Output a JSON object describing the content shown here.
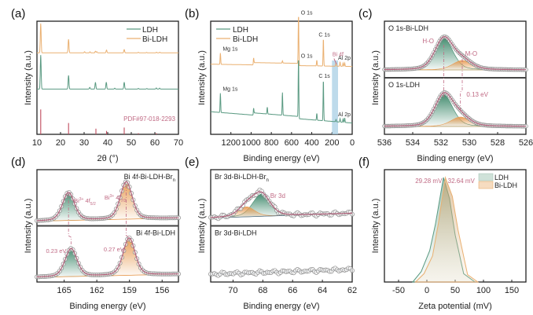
{
  "colors": {
    "ldh": "#5a9a82",
    "bi_ldh": "#eab071",
    "annotation": "#c06a84",
    "pdf_ref": "#c04a5e",
    "highlight": "#a8cfe4",
    "fit_line": "#b0607a",
    "marker_edge": "#8a8a8a",
    "frame": "#222222",
    "green_fill": "#3f8a6c",
    "orange_fill": "#e79b52"
  },
  "chart_data": [
    {
      "id": "a",
      "panel_label": "(a)",
      "type": "line",
      "title": "",
      "xlabel": "2θ (°)",
      "ylabel": "Intensity (a.u.)",
      "xlim": [
        10,
        70
      ],
      "xticks": [
        10,
        20,
        30,
        40,
        50,
        60,
        70
      ],
      "legend": {
        "placement": "top-right",
        "entries": [
          "LDH",
          "Bi-LDH"
        ]
      },
      "series": [
        {
          "name": "Bi-LDH",
          "color_key": "bi_ldh",
          "baseline": 0.72,
          "peaks": [
            [
              11.6,
              0.26
            ],
            [
              23.4,
              0.12
            ],
            [
              30.2,
              0.01
            ],
            [
              32.5,
              0.01
            ],
            [
              34.8,
              0.015
            ],
            [
              35.4,
              0.01
            ],
            [
              39.5,
              0.025
            ],
            [
              47.0,
              0.03
            ],
            [
              53.0,
              0.005
            ],
            [
              56.5,
              0.004
            ],
            [
              60.7,
              0.006
            ],
            [
              62.1,
              0.006
            ]
          ]
        },
        {
          "name": "LDH",
          "color_key": "ldh",
          "baseline": 0.4,
          "peaks": [
            [
              11.6,
              0.3
            ],
            [
              23.4,
              0.12
            ],
            [
              32.4,
              0.015
            ],
            [
              34.8,
              0.06
            ],
            [
              39.4,
              0.06
            ],
            [
              43.0,
              0.008
            ],
            [
              47.0,
              0.06
            ],
            [
              53.0,
              0.006
            ],
            [
              56.6,
              0.005
            ],
            [
              60.6,
              0.01
            ],
            [
              62.0,
              0.008
            ]
          ]
        }
      ],
      "reference": {
        "label": "PDF#97-018-2293",
        "peaks": [
          [
            11.6,
            0.22
          ],
          [
            23.4,
            0.1
          ],
          [
            35.0,
            0.05
          ],
          [
            39.5,
            0.03
          ],
          [
            47.0,
            0.06
          ],
          [
            53.0,
            0.01
          ],
          [
            60.6,
            0.01
          ]
        ]
      }
    },
    {
      "id": "b",
      "panel_label": "(b)",
      "type": "line",
      "xlabel": "Binding energy (eV)",
      "ylabel": "Intensity (a.u.)",
      "xlim": [
        1400,
        0
      ],
      "xticks": [
        1200,
        1000,
        800,
        600,
        400,
        200,
        0
      ],
      "legend": {
        "placement": "top-left",
        "entries": [
          "LDH",
          "Bi-LDH"
        ]
      },
      "highlight_band": [
        200,
        140
      ],
      "series": [
        {
          "name": "Bi-LDH",
          "color_key": "bi_ldh",
          "baseline_start": 0.62,
          "baseline_end": 0.6,
          "peaks": [
            [
              1304,
              0.1
            ],
            [
              975,
              0.04
            ],
            [
              690,
              0.02
            ],
            [
              531,
              0.43
            ],
            [
              350,
              0.05
            ],
            [
              285,
              0.24
            ],
            [
              160,
              0.03
            ],
            [
              120,
              0.04
            ],
            [
              90,
              0.03
            ],
            [
              74,
              0.03
            ]
          ],
          "labels": [
            {
              "text": "Mg 1s",
              "x": 1304
            },
            {
              "text": "O 1s",
              "x": 531
            },
            {
              "text": "C 1s",
              "x": 285
            },
            {
              "text": "Al 2p",
              "x": 74
            }
          ]
        },
        {
          "name": "LDH",
          "color_key": "ldh",
          "baseline_start": 0.2,
          "baseline_end": 0.1,
          "peaks": [
            [
              1304,
              0.17
            ],
            [
              975,
              0.04
            ],
            [
              840,
              0.06
            ],
            [
              690,
              0.2
            ],
            [
              531,
              0.52
            ],
            [
              350,
              0.06
            ],
            [
              285,
              0.36
            ],
            [
              160,
              0.02
            ],
            [
              120,
              0.03
            ],
            [
              90,
              0.03
            ],
            [
              74,
              0.04
            ]
          ],
          "labels": [
            {
              "text": "Mg 1s",
              "x": 1304
            },
            {
              "text": "O 1s",
              "x": 531
            },
            {
              "text": "C 1s",
              "x": 285
            },
            {
              "text": "Al 2p",
              "x": 74
            }
          ]
        }
      ],
      "annotation": {
        "text": "Bi 4f",
        "x": 160
      }
    },
    {
      "id": "c",
      "panel_label": "(c)",
      "type": "line",
      "xlabel": "Binding energy (eV)",
      "ylabel": "Intensity (a.u.)",
      "xlim": [
        536,
        526
      ],
      "xticks": [
        536,
        534,
        532,
        530,
        528,
        526
      ],
      "subpanels": [
        {
          "title": "O 1s-Bi-LDH",
          "components": [
            {
              "name": "H-O",
              "center": 531.8,
              "fwhm": 1.5,
              "height": 1.0,
              "color_key": "green_fill"
            },
            {
              "name": "M-O",
              "center": 530.5,
              "fwhm": 1.6,
              "height": 0.3,
              "color_key": "orange_fill"
            }
          ]
        },
        {
          "title": "O 1s-LDH",
          "components": [
            {
              "name": "H-O",
              "center": 531.8,
              "fwhm": 1.5,
              "height": 1.0,
              "color_key": "green_fill"
            },
            {
              "name": "M-O",
              "center": 530.63,
              "fwhm": 1.6,
              "height": 0.3,
              "color_key": "orange_fill"
            }
          ]
        }
      ],
      "annotations": [
        {
          "text": "H-O"
        },
        {
          "text": "M-O"
        },
        {
          "text": "0.13 eV"
        }
      ]
    },
    {
      "id": "d",
      "panel_label": "(d)",
      "type": "line",
      "xlabel": "Binding energy (eV)",
      "ylabel": "Intensity (a.u.)",
      "xlim": [
        167.5,
        154.5
      ],
      "xticks": [
        165,
        162,
        159,
        156
      ],
      "subpanels": [
        {
          "title": "Bi 4f-Bi-LDH-Br",
          "title_sup": "-",
          "title_sub": "n",
          "components": [
            {
              "name": "Bi3+ 4f5/2",
              "center": 164.6,
              "fwhm": 1.3,
              "height": 0.75,
              "color_key": "green_fill"
            },
            {
              "name": "Bi3+ 4f7/2",
              "center": 159.3,
              "fwhm": 1.3,
              "height": 1.0,
              "color_key": "orange_fill"
            }
          ]
        },
        {
          "title": "Bi 4f-Bi-LDH",
          "components": [
            {
              "name": "Bi3+ 4f5/2",
              "center": 164.37,
              "fwhm": 1.3,
              "height": 0.75,
              "color_key": "green_fill"
            },
            {
              "name": "Bi3+ 4f7/2",
              "center": 159.03,
              "fwhm": 1.3,
              "height": 1.0,
              "color_key": "orange_fill"
            }
          ]
        }
      ],
      "annotations": [
        {
          "text": "Bi",
          "sup": "3+",
          "mid": " 4f",
          "sub": "5/2"
        },
        {
          "text": "Bi",
          "sup": "3+",
          "mid": " 4f",
          "sub": "7/2"
        },
        {
          "text": "0.23 eV"
        },
        {
          "text": "0.27 eV"
        }
      ]
    },
    {
      "id": "e",
      "panel_label": "(e)",
      "type": "line",
      "xlabel": "Binding energy (eV)",
      "ylabel": "Intensity (a.u.)",
      "xlim": [
        71.5,
        62
      ],
      "xticks": [
        70,
        68,
        66,
        64,
        62
      ],
      "subpanels": [
        {
          "title": "Br 3d-Bi-LDH-Br",
          "title_sup": "-",
          "title_sub": "n",
          "components": [
            {
              "name": "Br 3d5/2",
              "center": 68.1,
              "fwhm": 1.4,
              "height": 1.0,
              "color_key": "green_fill"
            },
            {
              "name": "Br 3d3/2",
              "center": 69.1,
              "fwhm": 1.3,
              "height": 0.45,
              "color_key": "orange_fill"
            }
          ]
        },
        {
          "title": "Br 3d-Bi-LDH",
          "components": []
        }
      ],
      "annotations": [
        {
          "text": "Br 3d"
        }
      ]
    },
    {
      "id": "f",
      "panel_label": "(f)",
      "type": "area",
      "xlabel": "Zeta potential (mV)",
      "ylabel": "Intensity (a.u.)",
      "xlim": [
        -75,
        175
      ],
      "xticks": [
        -50,
        0,
        50,
        100,
        150
      ],
      "legend": {
        "placement": "top-right",
        "entries": [
          "LDH",
          "Bi-LDH"
        ]
      },
      "series": [
        {
          "name": "LDH",
          "color_key": "ldh",
          "x": [
            -25,
            -10,
            5,
            15,
            29.28,
            40,
            50,
            65,
            85
          ],
          "y": [
            0,
            0.1,
            0.3,
            0.55,
            1.0,
            0.8,
            0.45,
            0.08,
            0
          ]
        },
        {
          "name": "Bi-LDH",
          "color_key": "bi_ldh",
          "x": [
            -20,
            -5,
            10,
            20,
            32.64,
            45,
            55,
            72,
            90
          ],
          "y": [
            0,
            0.08,
            0.25,
            0.55,
            1.0,
            0.82,
            0.5,
            0.07,
            0
          ]
        }
      ],
      "annotations": [
        {
          "text": "29.28 mV"
        },
        {
          "text": "32.64 mV"
        }
      ]
    }
  ]
}
